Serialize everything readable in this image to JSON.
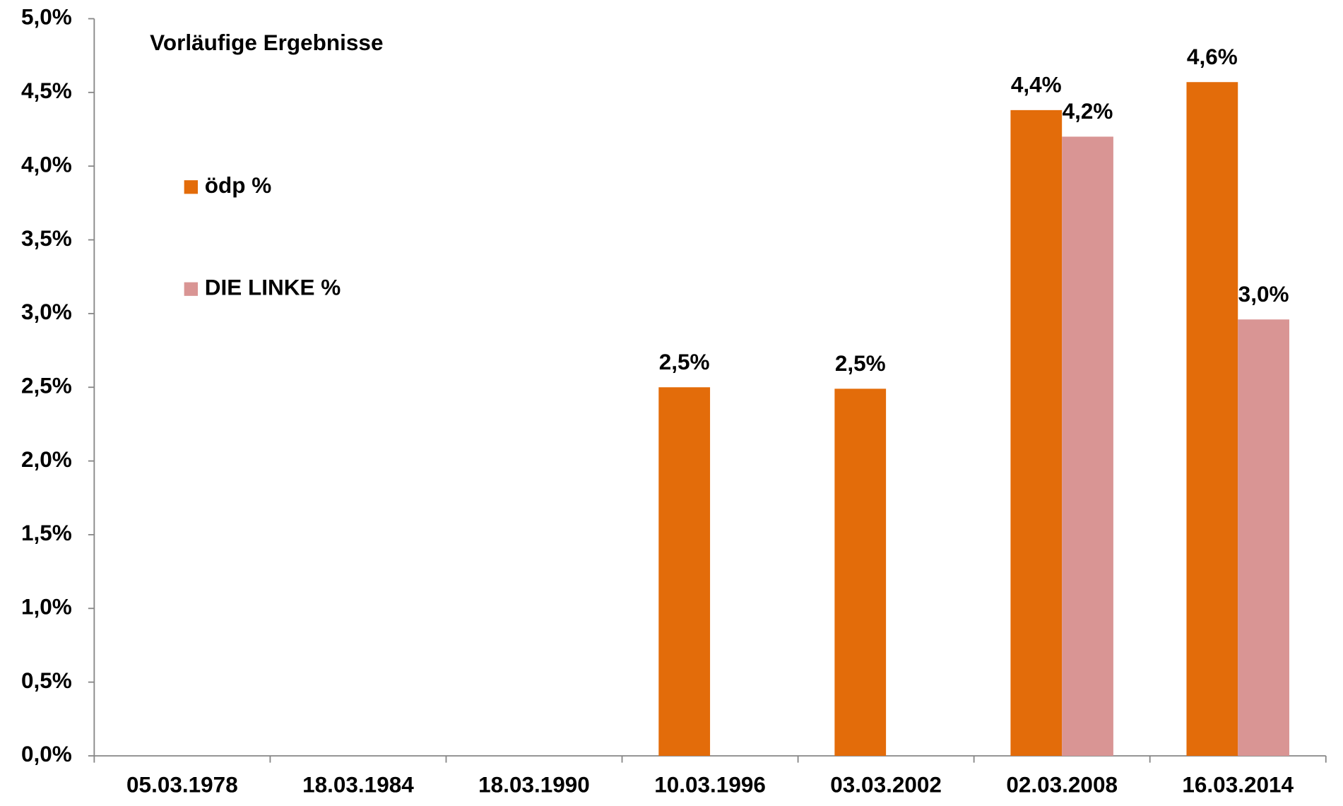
{
  "chart_data": {
    "type": "bar",
    "title": "Vorläufige Ergebnisse",
    "categories": [
      "05.03.1978",
      "18.03.1984",
      "18.03.1990",
      "10.03.1996",
      "03.03.2002",
      "02.03.2008",
      "16.03.2014"
    ],
    "series": [
      {
        "name": "ödp %",
        "color": "#e36c0a",
        "values": [
          null,
          null,
          null,
          2.5,
          2.49,
          4.38,
          4.57
        ],
        "value_labels": [
          null,
          null,
          null,
          "2,5%",
          "2,5%",
          "4,4%",
          "4,6%"
        ]
      },
      {
        "name": "DIE LINKE %",
        "color": "#d99594",
        "values": [
          null,
          null,
          null,
          null,
          null,
          4.2,
          2.96
        ],
        "value_labels": [
          null,
          null,
          null,
          null,
          null,
          "4,2%",
          "3,0%"
        ]
      }
    ],
    "ylim": [
      0,
      5
    ],
    "yticks": [
      {
        "value": 0,
        "label": "0,0%"
      },
      {
        "value": 0.5,
        "label": "0,5%"
      },
      {
        "value": 1,
        "label": "1,0%"
      },
      {
        "value": 1.5,
        "label": "1,5%"
      },
      {
        "value": 2,
        "label": "2,0%"
      },
      {
        "value": 2.5,
        "label": "2,5%"
      },
      {
        "value": 3,
        "label": "3,0%"
      },
      {
        "value": 3.5,
        "label": "3,5%"
      },
      {
        "value": 4,
        "label": "4,0%"
      },
      {
        "value": 4.5,
        "label": "4,5%"
      },
      {
        "value": 5,
        "label": "5,0%"
      }
    ],
    "grid": false,
    "legend": "upper left"
  }
}
